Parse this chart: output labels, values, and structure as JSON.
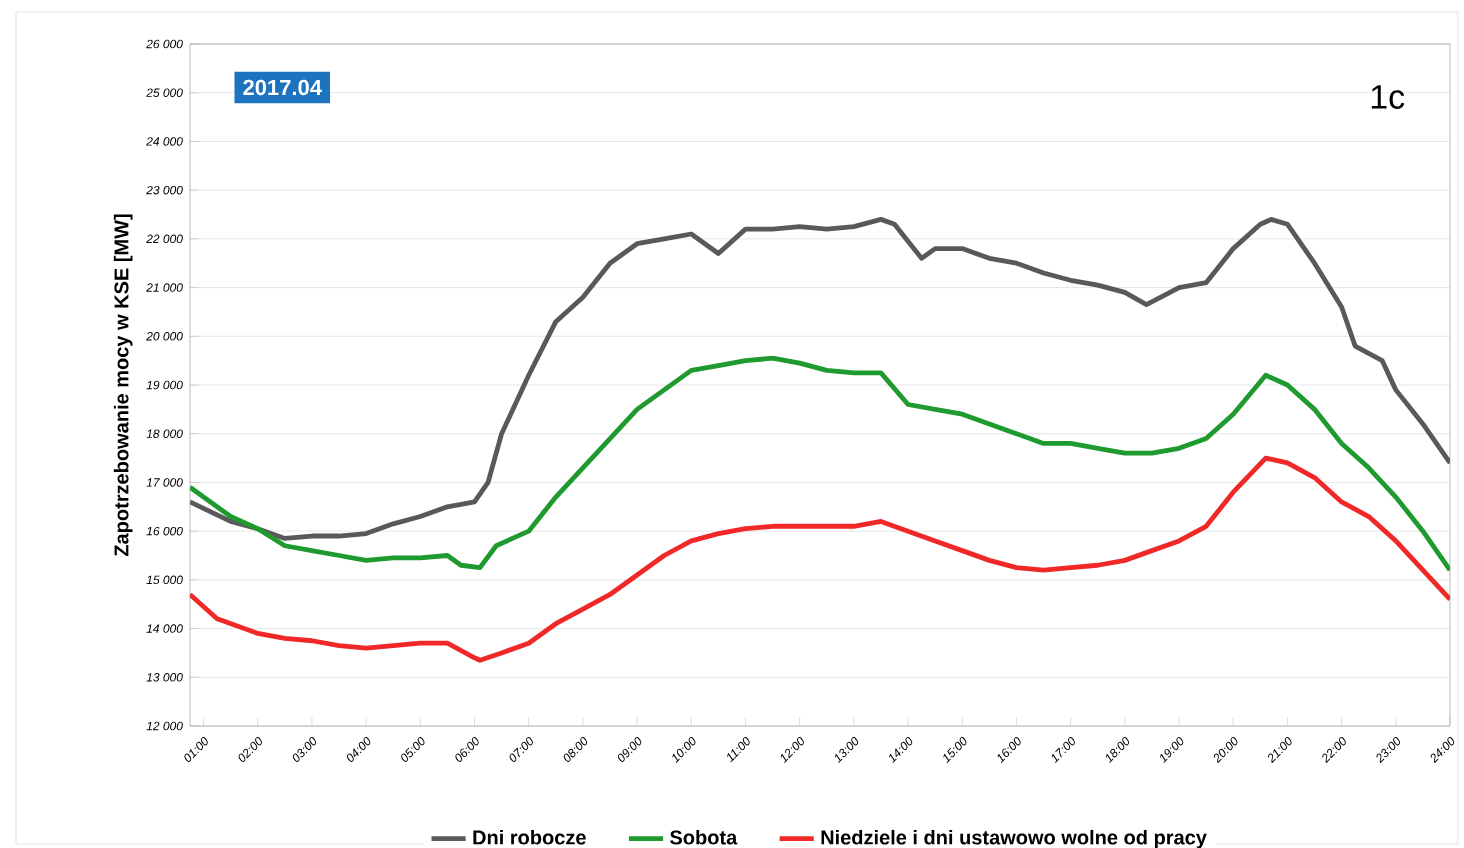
{
  "chart_data": {
    "type": "line",
    "ylabel": "Zapotrzebowanie mocy w KSE [MW]",
    "annotations": [
      "2017.04",
      "1c"
    ],
    "xlim": [
      0.75,
      24
    ],
    "xticks": [
      {
        "value": 1,
        "label": "01:00"
      },
      {
        "value": 2,
        "label": "02:00"
      },
      {
        "value": 3,
        "label": "03:00"
      },
      {
        "value": 4,
        "label": "04:00"
      },
      {
        "value": 5,
        "label": "05:00"
      },
      {
        "value": 6,
        "label": "06:00"
      },
      {
        "value": 7,
        "label": "07:00"
      },
      {
        "value": 8,
        "label": "08:00"
      },
      {
        "value": 9,
        "label": "09:00"
      },
      {
        "value": 10,
        "label": "10:00"
      },
      {
        "value": 11,
        "label": "11:00"
      },
      {
        "value": 12,
        "label": "12:00"
      },
      {
        "value": 13,
        "label": "13:00"
      },
      {
        "value": 14,
        "label": "14:00"
      },
      {
        "value": 15,
        "label": "15:00"
      },
      {
        "value": 16,
        "label": "16:00"
      },
      {
        "value": 17,
        "label": "17:00"
      },
      {
        "value": 18,
        "label": "18:00"
      },
      {
        "value": 19,
        "label": "19:00"
      },
      {
        "value": 20,
        "label": "20:00"
      },
      {
        "value": 21,
        "label": "21:00"
      },
      {
        "value": 22,
        "label": "22:00"
      },
      {
        "value": 23,
        "label": "23:00"
      },
      {
        "value": 24,
        "label": "24:00"
      }
    ],
    "ylim": [
      12000,
      26000
    ],
    "yticks": [
      {
        "value": 12000,
        "label": "12 000"
      },
      {
        "value": 13000,
        "label": "13 000"
      },
      {
        "value": 14000,
        "label": "14 000"
      },
      {
        "value": 15000,
        "label": "15 000"
      },
      {
        "value": 16000,
        "label": "16 000"
      },
      {
        "value": 17000,
        "label": "17 000"
      },
      {
        "value": 18000,
        "label": "18 000"
      },
      {
        "value": 19000,
        "label": "19 000"
      },
      {
        "value": 20000,
        "label": "20 000"
      },
      {
        "value": 21000,
        "label": "21 000"
      },
      {
        "value": 22000,
        "label": "22 000"
      },
      {
        "value": 23000,
        "label": "23 000"
      },
      {
        "value": 24000,
        "label": "24 000"
      },
      {
        "value": 25000,
        "label": "25 000"
      },
      {
        "value": 26000,
        "label": "26 000"
      }
    ],
    "grid": "y",
    "legend": "bottom",
    "marker": "none",
    "line_style": "solid",
    "series": [
      {
        "name": "Dni robocze",
        "color": "#595959",
        "x": [
          0.75,
          1.5,
          2,
          2.5,
          3,
          3.5,
          4,
          4.5,
          5,
          5.5,
          6,
          6.25,
          6.5,
          7,
          7.5,
          8,
          8.5,
          9,
          9.5,
          10,
          10.5,
          11,
          11.5,
          12,
          12.5,
          13,
          13.5,
          13.75,
          14.25,
          14.5,
          15,
          15.5,
          16,
          16.5,
          17,
          17.5,
          18,
          18.4,
          19,
          19.5,
          20,
          20.5,
          20.7,
          21,
          21.5,
          22,
          22.25,
          22.75,
          23,
          23.5,
          24
        ],
        "values": [
          16600,
          16200,
          16050,
          15850,
          15900,
          15900,
          15950,
          16150,
          16300,
          16500,
          16600,
          17000,
          18000,
          19200,
          20300,
          20800,
          21500,
          21900,
          22000,
          22100,
          21700,
          22200,
          22200,
          22250,
          22200,
          22250,
          22400,
          22300,
          21600,
          21800,
          21800,
          21600,
          21500,
          21300,
          21150,
          21050,
          20900,
          20650,
          21000,
          21100,
          21800,
          22300,
          22400,
          22300,
          21500,
          20600,
          19800,
          19500,
          18900,
          18200,
          17400
        ]
      },
      {
        "name": "Sobota",
        "color": "#1e9a2e",
        "x": [
          0.75,
          1.5,
          2,
          2.5,
          3,
          3.5,
          4,
          4.5,
          5,
          5.5,
          5.75,
          6.1,
          6.4,
          7,
          7.5,
          8,
          8.5,
          9,
          9.5,
          10,
          10.5,
          11,
          11.5,
          12,
          12.5,
          13,
          13.5,
          14,
          14.5,
          15,
          15.5,
          16,
          16.5,
          17,
          17.5,
          18,
          18.5,
          19,
          19.5,
          20,
          20.6,
          21,
          21.5,
          22,
          22.5,
          23,
          23.5,
          24
        ],
        "values": [
          16900,
          16300,
          16050,
          15700,
          15600,
          15500,
          15400,
          15450,
          15450,
          15500,
          15300,
          15250,
          15700,
          16000,
          16700,
          17300,
          17900,
          18500,
          18900,
          19300,
          19400,
          19500,
          19550,
          19450,
          19300,
          19250,
          19250,
          18600,
          18500,
          18400,
          18200,
          18000,
          17800,
          17800,
          17700,
          17600,
          17600,
          17700,
          17900,
          18400,
          19200,
          19000,
          18500,
          17800,
          17300,
          16700,
          16000,
          15200
        ]
      },
      {
        "name": "Niedziele i dni ustawowo wolne od pracy",
        "color": "#f02828",
        "x": [
          0.75,
          1.25,
          2,
          2.5,
          3,
          3.5,
          4,
          4.5,
          5,
          5.5,
          6,
          6.1,
          6.5,
          7,
          7.5,
          8,
          8.5,
          9,
          9.5,
          10,
          10.5,
          11,
          11.5,
          12,
          12.5,
          13,
          13.5,
          14,
          14.5,
          15,
          15.5,
          16,
          16.5,
          17,
          17.5,
          18,
          18.5,
          19,
          19.5,
          20,
          20.6,
          21,
          21.5,
          22,
          22.5,
          23,
          23.5,
          24
        ],
        "values": [
          14700,
          14200,
          13900,
          13800,
          13750,
          13650,
          13600,
          13650,
          13700,
          13700,
          13400,
          13350,
          13500,
          13700,
          14100,
          14400,
          14700,
          15100,
          15500,
          15800,
          15950,
          16050,
          16100,
          16100,
          16100,
          16100,
          16200,
          16000,
          15800,
          15600,
          15400,
          15250,
          15200,
          15250,
          15300,
          15400,
          15600,
          15800,
          16100,
          16800,
          17500,
          17400,
          17100,
          16600,
          16300,
          15800,
          15200,
          14600
        ]
      }
    ]
  }
}
